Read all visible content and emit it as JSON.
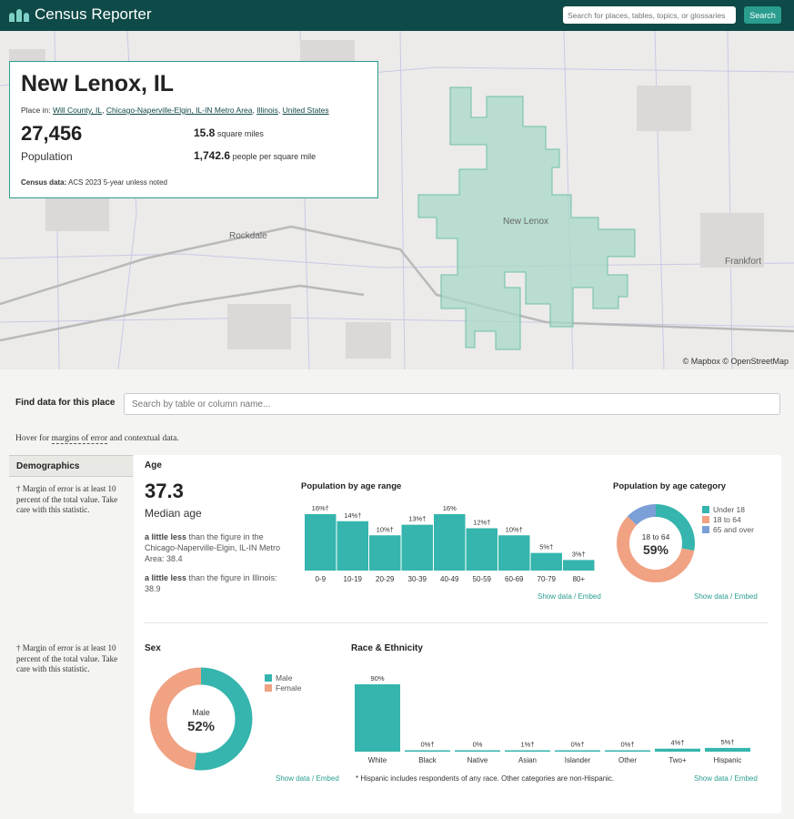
{
  "header": {
    "app_name": "Census Reporter",
    "search_placeholder": "Search for places, tables, topics, or glossaries",
    "search_button": "Search"
  },
  "map": {
    "labels": [
      "New Lenox",
      "Rockdale",
      "Frankfort"
    ],
    "attribution": "© Mapbox © OpenStreetMap"
  },
  "profile": {
    "title": "New Lenox, IL",
    "place_in_prefix": "Place in:",
    "place_in_links": [
      "Will County, IL",
      "Chicago-Naperville-Elgin, IL-IN Metro Area",
      "Illinois",
      "United States"
    ],
    "population": "27,456",
    "population_label": "Population",
    "area_value": "15.8",
    "area_unit": "square miles",
    "density_value": "1,742.6",
    "density_unit": "people per square mile",
    "census_label": "Census data:",
    "census_value": "ACS 2023 5-year unless noted"
  },
  "find": {
    "label": "Find data for this place",
    "placeholder": "Search by table or column name..."
  },
  "hover_note_prefix": "Hover for ",
  "hover_note_link": "margins of error",
  "hover_note_suffix": " and contextual data.",
  "sidebar": {
    "section": "Demographics",
    "note_1": "† Margin of error is at least 10 percent of the total value. Take care with this statistic.",
    "note_2": "† Margin of error is at least 10 percent of the total value. Take care with this statistic."
  },
  "age": {
    "heading": "Age",
    "median": "37.3",
    "median_label": "Median age",
    "compare_1_bold": "a little less",
    "compare_1_rest": " than the figure in the Chicago-Naperville-Elgin, IL-IN Metro Area: 38.4",
    "compare_2_bold": "a little less",
    "compare_2_rest": " than the figure in Illinois: 38.9",
    "range_heading": "Population by age range",
    "category_heading": "Population by age category",
    "show_data": "Show data / Embed",
    "donut_center_label": "18 to 64",
    "donut_center_value": "59%"
  },
  "sex": {
    "heading": "Sex",
    "donut_center_label": "Male",
    "donut_center_value": "52%",
    "show_data": "Show data / Embed"
  },
  "race": {
    "heading": "Race & Ethnicity",
    "footnote": "* Hispanic includes respondents of any race. Other categories are non-Hispanic.",
    "show_data": "Show data / Embed"
  },
  "colors": {
    "teal": "#35b5ad",
    "salmon": "#f0a283",
    "blue": "#7b9fd7",
    "dark_header": "#0e4a47",
    "link": "#2a9d8f"
  },
  "chart_data": [
    {
      "type": "bar",
      "title": "Population by age range",
      "categories": [
        "0-9",
        "10-19",
        "20-29",
        "30-39",
        "40-49",
        "50-59",
        "60-69",
        "70-79",
        "80+"
      ],
      "values": [
        16,
        14,
        10,
        13,
        16,
        12,
        10,
        5,
        3
      ],
      "labels": [
        "16%†",
        "14%†",
        "10%†",
        "13%†",
        "16%",
        "12%†",
        "10%†",
        "5%†",
        "3%†"
      ]
    },
    {
      "type": "pie",
      "title": "Population by age category",
      "categories": [
        "Under 18",
        "18 to 64",
        "65 and over"
      ],
      "values": [
        28,
        59,
        13
      ]
    },
    {
      "type": "pie",
      "title": "Sex",
      "categories": [
        "Male",
        "Female"
      ],
      "values": [
        52,
        48
      ]
    },
    {
      "type": "bar",
      "title": "Race & Ethnicity",
      "categories": [
        "White",
        "Black",
        "Native",
        "Asian",
        "Islander",
        "Other",
        "Two+",
        "Hispanic"
      ],
      "values": [
        90,
        0,
        0,
        1,
        0,
        0,
        4,
        5
      ],
      "labels": [
        "90%",
        "0%†",
        "0%",
        "1%†",
        "0%†",
        "0%†",
        "4%†",
        "5%†"
      ]
    }
  ]
}
